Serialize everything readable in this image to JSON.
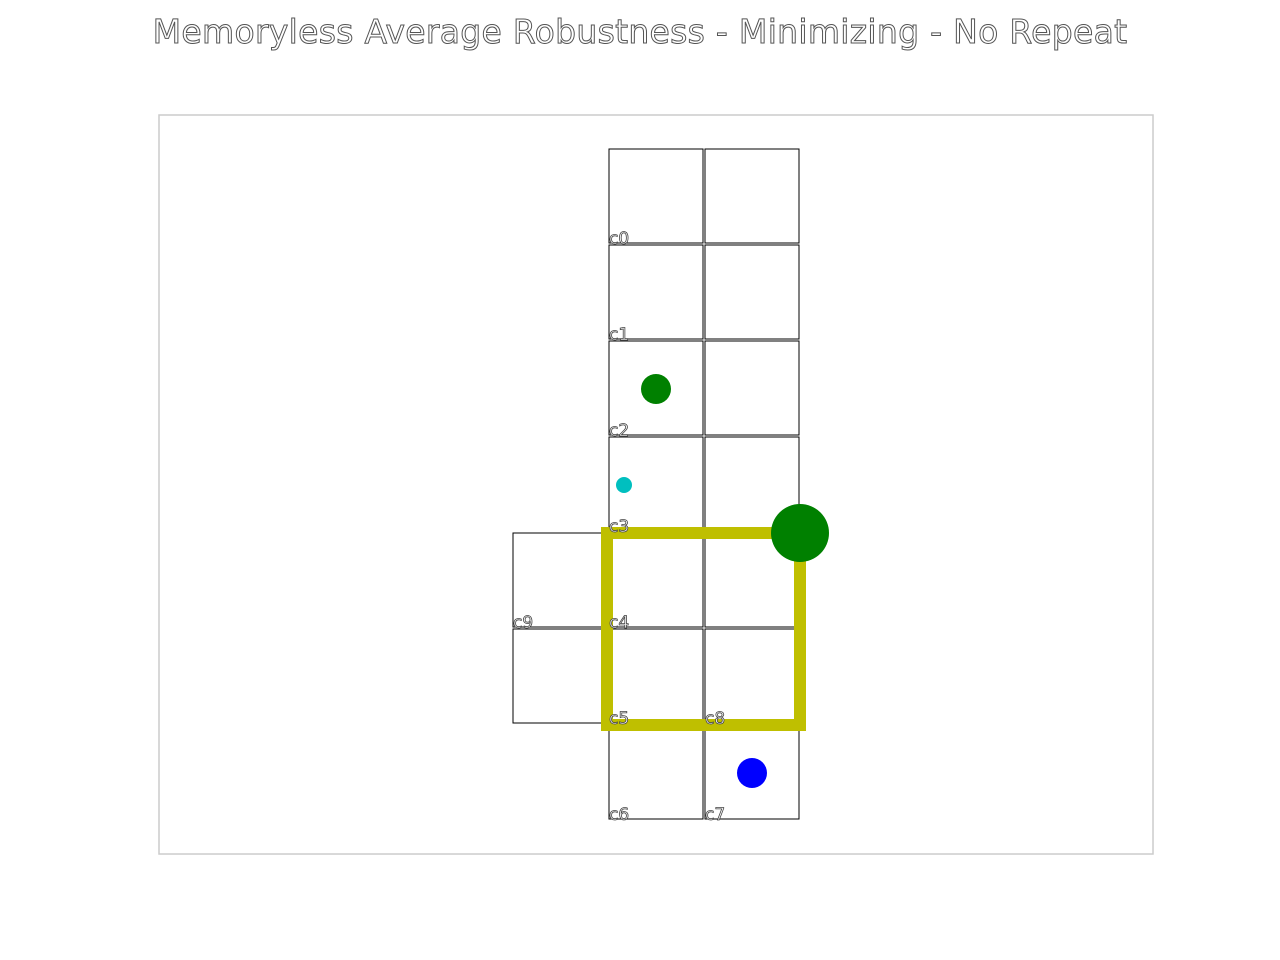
{
  "title": "Memoryless Average Robustness - Minimizing - No Repeat",
  "colors": {
    "path": "#bfbf00",
    "goal_marker": "#008000",
    "start_marker": "#0000ff",
    "small_marker": "#00bfbf",
    "grid_line": "#000000",
    "frame": "#cccccc"
  },
  "cells": [
    {
      "label": "c0"
    },
    {
      "label": "c1"
    },
    {
      "label": "c2"
    },
    {
      "label": "c3"
    },
    {
      "label": "c4"
    },
    {
      "label": "c5"
    },
    {
      "label": "c6"
    },
    {
      "label": "c7"
    },
    {
      "label": "c8"
    },
    {
      "label": "c9"
    }
  ]
}
